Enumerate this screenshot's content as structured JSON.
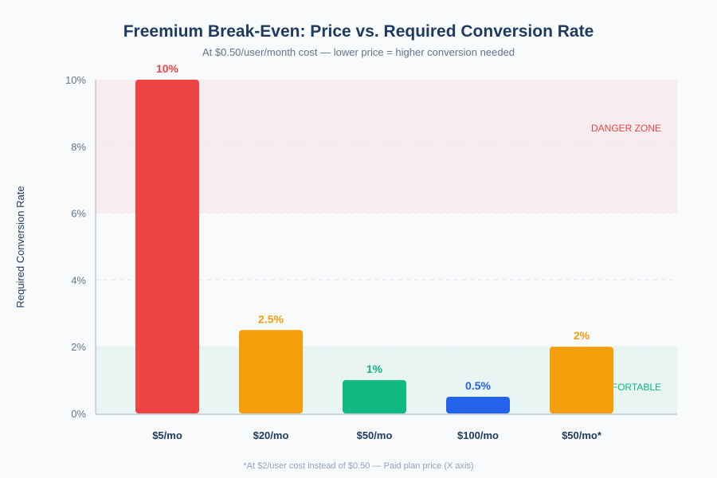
{
  "chart_data": {
    "type": "bar",
    "title": "Freemium Break-Even: Price vs. Required Conversion Rate",
    "subtitle": "At $0.50/user/month cost — lower price = higher conversion needed",
    "ylabel": "Required Conversion Rate",
    "footnote": "*At $2/user cost instead of $0.50 — Paid plan price (X axis)",
    "ylim": [
      0,
      10
    ],
    "yticks": [
      0,
      2,
      4,
      6,
      8,
      10
    ],
    "ytick_labels": [
      "0%",
      "2%",
      "4%",
      "6%",
      "8%",
      "10%"
    ],
    "categories": [
      "$5/mo",
      "$20/mo",
      "$50/mo",
      "$100/mo",
      "$50/mo*"
    ],
    "values": [
      10,
      2.5,
      1,
      0.5,
      2
    ],
    "value_labels": [
      "10%",
      "2.5%",
      "1%",
      "0.5%",
      "2%"
    ],
    "colors": [
      "#ef4444",
      "#f59e0b",
      "#10b981",
      "#2563eb",
      "#f59e0b"
    ],
    "zones": [
      {
        "label": "DANGER ZONE",
        "from": 6,
        "to": 10,
        "fill": "#f9ecef",
        "text_color": "#ef4444"
      },
      {
        "label": "COMFORTABLE",
        "from": 0,
        "to": 2,
        "fill": "#e8f5f3",
        "text_color": "#10b981"
      }
    ]
  }
}
